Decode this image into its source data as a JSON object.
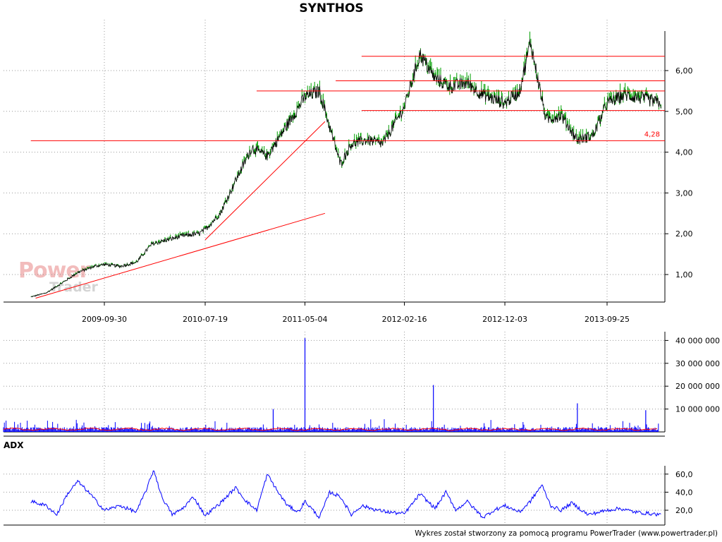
{
  "title": "SYNTHOS",
  "adx_label": "ADX",
  "footer": "Wykres został stworzony za pomocą programu PowerTrader (www.powertrader.pl)",
  "watermark": {
    "line1": "Power",
    "line2": "Trader"
  },
  "colors": {
    "price_up": "#00a000",
    "price_line": "#000000",
    "lines": "#ff0000",
    "volume": "#0000ff",
    "volume_avg": "#ff0000",
    "adx": "#0000ff",
    "grid": "#999999"
  },
  "chart_data": [
    {
      "type": "line",
      "name": "price",
      "title": "SYNTHOS",
      "x_ticks": [
        "2009-09-30",
        "2010-07-19",
        "2011-05-04",
        "2012-02-16",
        "2012-12-03",
        "2013-09-25"
      ],
      "y_ticks": [
        "1,00",
        "2,00",
        "3,00",
        "4,00",
        "5,00",
        "6,00"
      ],
      "ylim": [
        0.3,
        6.9
      ],
      "x": [
        "2009-03-01",
        "2009-04-15",
        "2009-06-01",
        "2009-07-15",
        "2009-09-01",
        "2009-09-30",
        "2009-11-15",
        "2010-01-01",
        "2010-02-15",
        "2010-04-01",
        "2010-05-15",
        "2010-07-01",
        "2010-07-19",
        "2010-09-01",
        "2010-10-15",
        "2010-12-01",
        "2011-01-15",
        "2011-03-01",
        "2011-05-04",
        "2011-06-15",
        "2011-07-15",
        "2011-08-15",
        "2011-09-15",
        "2011-11-01",
        "2011-12-15",
        "2012-02-16",
        "2012-04-01",
        "2012-05-15",
        "2012-07-01",
        "2012-08-15",
        "2012-10-01",
        "2012-12-03",
        "2013-01-15",
        "2013-02-15",
        "2013-04-01",
        "2013-05-15",
        "2013-07-01",
        "2013-08-15",
        "2013-09-25",
        "2013-11-15",
        "2014-01-15",
        "2014-02-28"
      ],
      "values": [
        0.45,
        0.55,
        0.8,
        1.05,
        1.2,
        1.25,
        1.2,
        1.3,
        1.75,
        1.85,
        1.95,
        2.0,
        2.1,
        2.5,
        3.3,
        4.1,
        3.9,
        4.5,
        5.35,
        5.5,
        4.6,
        3.7,
        4.2,
        4.3,
        4.2,
        5.1,
        6.4,
        5.8,
        5.6,
        5.7,
        5.4,
        5.2,
        5.5,
        6.7,
        4.8,
        4.9,
        4.3,
        4.4,
        5.2,
        5.4,
        5.3,
        5.2
      ],
      "horizontal_lines": [
        {
          "y": 6.35,
          "x_from": "2011-10-15"
        },
        {
          "y": 5.75,
          "x_from": "2011-08-01"
        },
        {
          "y": 5.5,
          "x_from": "2010-12-15"
        },
        {
          "y": 5.02,
          "x_from": "2011-10-15"
        },
        {
          "y": 4.28,
          "x_from": "2009-03-01",
          "label": "4,28"
        }
      ],
      "trend_lines": [
        {
          "x1": "2009-03-15",
          "y1": 0.42,
          "x2": "2011-07-01",
          "y2": 2.5
        },
        {
          "x1": "2010-07-19",
          "y1": 1.85,
          "x2": "2011-07-01",
          "y2": 4.75
        }
      ]
    },
    {
      "type": "bar",
      "name": "volume",
      "y_ticks": [
        "10 000 000",
        "20 000 000",
        "30 000 000",
        "40 000 000"
      ],
      "ylim": [
        0,
        44000000
      ],
      "spikes": [
        {
          "x": "2011-05-04",
          "value": 41000000
        },
        {
          "x": "2012-05-10",
          "value": 20500000
        },
        {
          "x": "2013-07-01",
          "value": 12500000
        },
        {
          "x": "2011-02-01",
          "value": 10000000
        },
        {
          "x": "2014-01-15",
          "value": 9500000
        }
      ]
    },
    {
      "type": "line",
      "name": "ADX",
      "title": "ADX",
      "y_ticks": [
        "20,0",
        "40,0",
        "60,0"
      ],
      "ylim": [
        5,
        75
      ],
      "x": [
        "2009-03-01",
        "2009-04-15",
        "2009-05-15",
        "2009-06-15",
        "2009-07-15",
        "2009-08-15",
        "2009-09-30",
        "2009-11-15",
        "2010-01-01",
        "2010-02-01",
        "2010-02-20",
        "2010-03-15",
        "2010-04-15",
        "2010-05-15",
        "2010-06-15",
        "2010-07-19",
        "2010-09-01",
        "2010-10-15",
        "2010-11-15",
        "2010-12-15",
        "2011-01-15",
        "2011-02-15",
        "2011-03-15",
        "2011-04-15",
        "2011-05-04",
        "2011-06-15",
        "2011-07-15",
        "2011-08-15",
        "2011-09-15",
        "2011-10-15",
        "2011-12-01",
        "2012-01-01",
        "2012-02-16",
        "2012-04-01",
        "2012-05-15",
        "2012-06-15",
        "2012-07-15",
        "2012-08-15",
        "2012-10-01",
        "2012-11-01",
        "2012-12-03",
        "2013-01-15",
        "2013-02-15",
        "2013-03-20",
        "2013-04-15",
        "2013-05-15",
        "2013-06-15",
        "2013-08-01",
        "2013-09-25",
        "2013-11-01",
        "2013-12-15",
        "2014-02-28"
      ],
      "values": [
        30,
        25,
        15,
        38,
        52,
        40,
        20,
        25,
        18,
        45,
        65,
        35,
        15,
        22,
        35,
        14,
        28,
        45,
        30,
        20,
        60,
        40,
        25,
        18,
        30,
        12,
        40,
        35,
        15,
        25,
        20,
        18,
        16,
        38,
        22,
        40,
        20,
        30,
        12,
        20,
        25,
        18,
        30,
        48,
        25,
        20,
        28,
        15,
        20,
        22,
        18,
        15
      ]
    }
  ]
}
